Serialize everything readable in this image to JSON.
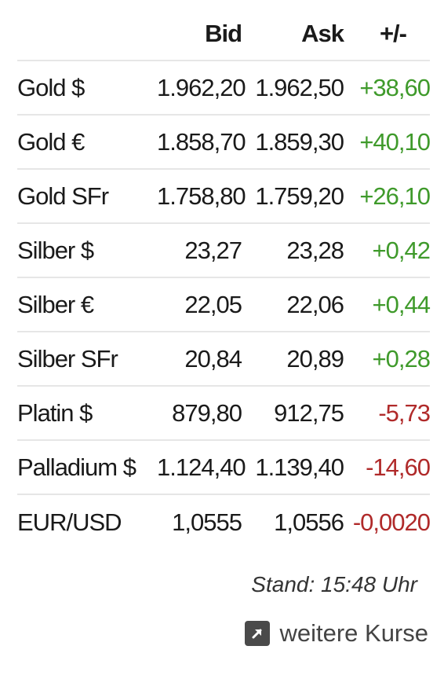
{
  "table": {
    "headers": {
      "name": "",
      "bid": "Bid",
      "ask": "Ask",
      "change": "+/-"
    },
    "rows": [
      {
        "name": "Gold $",
        "bid": "1.962,20",
        "ask": "1.962,50",
        "change": "+38,60",
        "direction": "up"
      },
      {
        "name": "Gold €",
        "bid": "1.858,70",
        "ask": "1.859,30",
        "change": "+40,10",
        "direction": "up"
      },
      {
        "name": "Gold SFr",
        "bid": "1.758,80",
        "ask": "1.759,20",
        "change": "+26,10",
        "direction": "up"
      },
      {
        "name": "Silber $",
        "bid": "23,27",
        "ask": "23,28",
        "change": "+0,42",
        "direction": "up"
      },
      {
        "name": "Silber €",
        "bid": "22,05",
        "ask": "22,06",
        "change": "+0,44",
        "direction": "up"
      },
      {
        "name": "Silber SFr",
        "bid": "20,84",
        "ask": "20,89",
        "change": "+0,28",
        "direction": "up"
      },
      {
        "name": "Platin $",
        "bid": "879,80",
        "ask": "912,75",
        "change": "-5,73",
        "direction": "down"
      },
      {
        "name": "Palladium $",
        "bid": "1.124,40",
        "ask": "1.139,40",
        "change": "-14,60",
        "direction": "down"
      },
      {
        "name": "EUR/USD",
        "bid": "1,0555",
        "ask": "1,0556",
        "change": "-0,0020",
        "direction": "down"
      }
    ]
  },
  "footer": {
    "stand": "Stand: 15:48 Uhr",
    "more_link_label": "weitere Kurse",
    "more_link_icon": "external-link-icon"
  },
  "colors": {
    "positive": "#3f9a2b",
    "negative": "#b02a2a",
    "divider": "#e6e6e6"
  }
}
